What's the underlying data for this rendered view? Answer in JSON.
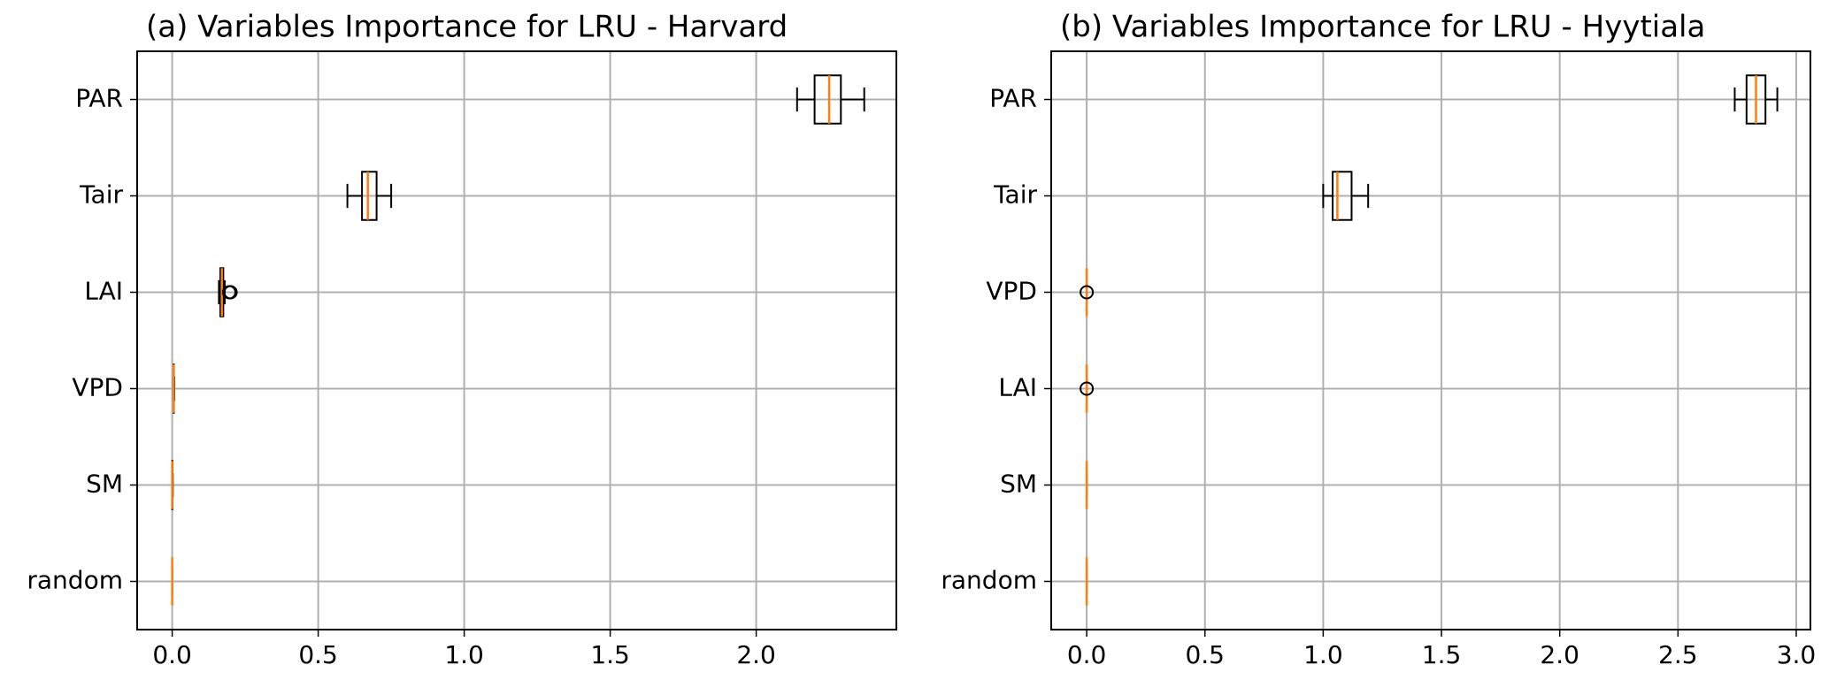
{
  "chart_data": [
    {
      "type": "boxplot",
      "orientation": "horizontal",
      "title": "(a) Variables Importance for LRU - Harvard",
      "categories": [
        "PAR",
        "Tair",
        "LAI",
        "VPD",
        "SM",
        "random"
      ],
      "min": [
        2.14,
        0.6,
        0.16,
        0.004,
        0.0,
        0.0
      ],
      "q1": [
        2.2,
        0.65,
        0.165,
        0.005,
        0.0,
        0.0
      ],
      "median": [
        2.25,
        0.67,
        0.17,
        0.005,
        0.0,
        0.0
      ],
      "q3": [
        2.29,
        0.7,
        0.175,
        0.006,
        0.001,
        0.0
      ],
      "max": [
        2.37,
        0.75,
        0.18,
        0.007,
        0.002,
        0.0
      ],
      "outliers": [
        [],
        [],
        [
          0.195,
          0.2
        ],
        [],
        [],
        []
      ],
      "box_color": "#000000",
      "median_color": "#ff7f0e",
      "xlim": [
        -0.12,
        2.48
      ],
      "xticks": [
        {
          "value": 0,
          "label": "0.0"
        },
        0.5,
        {
          "value": 1,
          "label": "1.0"
        },
        1.5,
        {
          "value": 2,
          "label": "2.0"
        }
      ],
      "grid": true
    },
    {
      "type": "boxplot",
      "orientation": "horizontal",
      "title": "(b) Variables Importance for LRU - Hyytiala",
      "categories": [
        "PAR",
        "Tair",
        "VPD",
        "LAI",
        "SM",
        "random"
      ],
      "min": [
        2.74,
        1.0,
        0.0,
        0.0,
        0.0,
        0.0
      ],
      "q1": [
        2.79,
        1.04,
        0.0,
        0.0,
        0.0,
        0.0
      ],
      "median": [
        2.83,
        1.06,
        0.0,
        0.0,
        0.0,
        0.0
      ],
      "q3": [
        2.87,
        1.12,
        0.0,
        0.0,
        0.0,
        0.0
      ],
      "max": [
        2.92,
        1.19,
        0.0,
        0.0,
        0.0,
        0.0
      ],
      "outliers": [
        [],
        [],
        [
          0.0
        ],
        [
          0.0
        ],
        [],
        []
      ],
      "box_color": "#000000",
      "median_color": "#ff7f0e",
      "xlim": [
        -0.15,
        3.06
      ],
      "xticks": [
        {
          "value": 0,
          "label": "0.0"
        },
        0.5,
        {
          "value": 1,
          "label": "1.0"
        },
        1.5,
        {
          "value": 2,
          "label": "2.0"
        },
        2.5,
        {
          "value": 3,
          "label": "3.0"
        }
      ],
      "grid": true
    }
  ]
}
